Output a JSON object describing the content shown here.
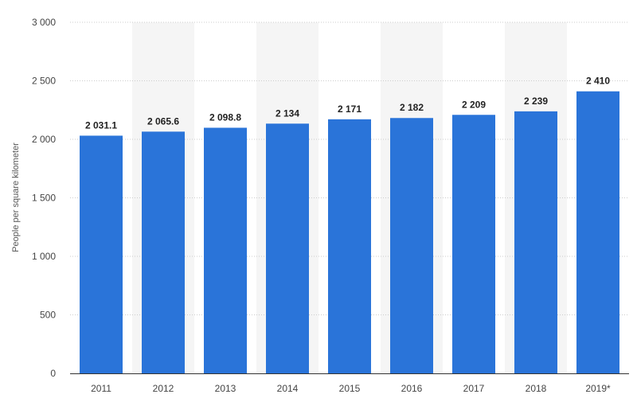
{
  "chart_data": {
    "type": "bar",
    "categories": [
      "2011",
      "2012",
      "2013",
      "2014",
      "2015",
      "2016",
      "2017",
      "2018",
      "2019*"
    ],
    "values": [
      2031.1,
      2065.6,
      2098.8,
      2134,
      2171,
      2182,
      2209,
      2239,
      2410
    ],
    "value_labels": [
      "2 031.1",
      "2 065.6",
      "2 098.8",
      "2 134",
      "2 171",
      "2 182",
      "2 209",
      "2 239",
      "2 410"
    ],
    "title": "",
    "xlabel": "",
    "ylabel": "People per square kilometer",
    "ylim": [
      0,
      3000
    ],
    "yticks": [
      0,
      500,
      1000,
      1500,
      2000,
      2500,
      3000
    ],
    "ytick_labels": [
      "0",
      "500",
      "1 000",
      "1 500",
      "2 000",
      "2 500",
      "3 000"
    ],
    "grid": true,
    "legend": "none",
    "colors": {
      "bar": "#2a74d9",
      "band": "#f5f5f5",
      "grid": "#cccccc",
      "axis": "#333333"
    }
  }
}
